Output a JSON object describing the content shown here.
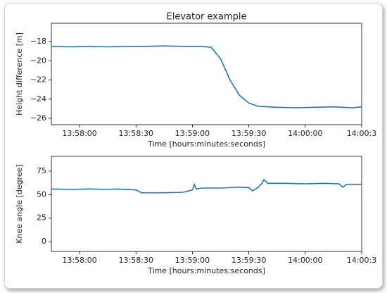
{
  "chart_data": [
    {
      "type": "line",
      "title": "Elevator example",
      "x_label": "Time [hours:minutes:seconds]",
      "y_label": "Height difference [m]",
      "xlim": [
        50265,
        50430
      ],
      "ylim": [
        -26.66,
        -16.09
      ],
      "xticks": [
        {
          "value": 50280,
          "label": "13:58:00"
        },
        {
          "value": 50310,
          "label": "13:58:30"
        },
        {
          "value": 50340,
          "label": "13:59:00"
        },
        {
          "value": 50370,
          "label": "13:59:30"
        },
        {
          "value": 50400,
          "label": "14:00:00"
        },
        {
          "value": 50430,
          "label": "14:00:3"
        }
      ],
      "yticks": [
        {
          "value": -18,
          "label": "−18"
        },
        {
          "value": -20,
          "label": "−20"
        },
        {
          "value": -22,
          "label": "−22"
        },
        {
          "value": -24,
          "label": "−24"
        },
        {
          "value": -26,
          "label": "−26"
        }
      ],
      "color": "#1f77b4",
      "x": [
        50265,
        50275,
        50285,
        50295,
        50305,
        50315,
        50325,
        50335,
        50345,
        50350,
        50355,
        50360,
        50365,
        50370,
        50375,
        50385,
        50395,
        50405,
        50415,
        50425,
        50430
      ],
      "values": [
        -18.5,
        -18.55,
        -18.5,
        -18.55,
        -18.5,
        -18.5,
        -18.45,
        -18.5,
        -18.5,
        -18.6,
        -19.8,
        -22.0,
        -23.6,
        -24.4,
        -24.75,
        -24.85,
        -24.9,
        -24.85,
        -24.8,
        -24.9,
        -24.8
      ]
    },
    {
      "type": "line",
      "x_label": "Time [hours:minutes:seconds]",
      "y_label": "Knee angle [degree]",
      "xlim": [
        50265,
        50430
      ],
      "ylim": [
        -10.4,
        90.7
      ],
      "xticks": [
        {
          "value": 50280,
          "label": "13:58:00"
        },
        {
          "value": 50310,
          "label": "13:58:30"
        },
        {
          "value": 50340,
          "label": "13:59:00"
        },
        {
          "value": 50370,
          "label": "13:59:30"
        },
        {
          "value": 50400,
          "label": "14:00:00"
        },
        {
          "value": 50430,
          "label": "14:00:3"
        }
      ],
      "yticks": [
        0,
        25,
        50,
        75
      ],
      "color": "#1f77b4",
      "x": [
        50265,
        50275,
        50285,
        50295,
        50300,
        50310,
        50313,
        50325,
        50335,
        50340,
        50341,
        50342,
        50345,
        50355,
        50365,
        50370,
        50372,
        50375,
        50377,
        50378,
        50380,
        50390,
        50400,
        50410,
        50418,
        50420,
        50422,
        50430
      ],
      "values": [
        56,
        55.5,
        56,
        55.5,
        56,
        55,
        52,
        52,
        52.5,
        55,
        61,
        56,
        57,
        57,
        58,
        57.5,
        54,
        58,
        62,
        66,
        62,
        62,
        61.5,
        62,
        61.5,
        58,
        61,
        61
      ]
    }
  ]
}
